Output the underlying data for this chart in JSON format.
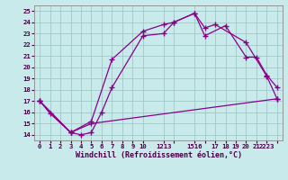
{
  "xlabel": "Windchill (Refroidissement éolien,°C)",
  "background_color": "#c8eaea",
  "grid_color": "#a0c8c8",
  "line_color": "#880088",
  "xlim": [
    -0.5,
    23.5
  ],
  "ylim": [
    13.5,
    25.5
  ],
  "xtick_positions": [
    0,
    1,
    2,
    3,
    4,
    5,
    6,
    7,
    8,
    9,
    10,
    12,
    13,
    15,
    16,
    17,
    18,
    19,
    20,
    21,
    22,
    23
  ],
  "xtick_labels": [
    "0",
    "1",
    "2",
    "3",
    "4",
    "5",
    "6",
    "7",
    "8",
    "9",
    "10",
    "1213",
    "",
    "1516",
    "",
    "17",
    "18",
    "19",
    "20",
    "21",
    "2223",
    ""
  ],
  "ytick_positions": [
    14,
    15,
    16,
    17,
    18,
    19,
    20,
    21,
    22,
    23,
    24,
    25
  ],
  "ytick_labels": [
    "14",
    "15",
    "16",
    "17",
    "18",
    "19",
    "20",
    "21",
    "22",
    "23",
    "24",
    "25"
  ],
  "series1_x": [
    0,
    1,
    3,
    4,
    5,
    6,
    7,
    10,
    12,
    13,
    15,
    16,
    17,
    20,
    22,
    23
  ],
  "series1_y": [
    17,
    15.9,
    14.2,
    14.0,
    14.2,
    16.0,
    18.2,
    22.8,
    23.0,
    24.0,
    24.8,
    23.5,
    23.8,
    22.2,
    19.2,
    17.2
  ],
  "series2_x": [
    0,
    3,
    5,
    7,
    10,
    12,
    13,
    15,
    16,
    18,
    20,
    21,
    22,
    23
  ],
  "series2_y": [
    17,
    14.2,
    15.2,
    20.7,
    23.2,
    23.8,
    24.0,
    24.8,
    22.8,
    23.7,
    20.9,
    20.9,
    19.3,
    18.2
  ],
  "series3_x": [
    0,
    3,
    5,
    23
  ],
  "series3_y": [
    17,
    14.2,
    15.0,
    17.2
  ]
}
